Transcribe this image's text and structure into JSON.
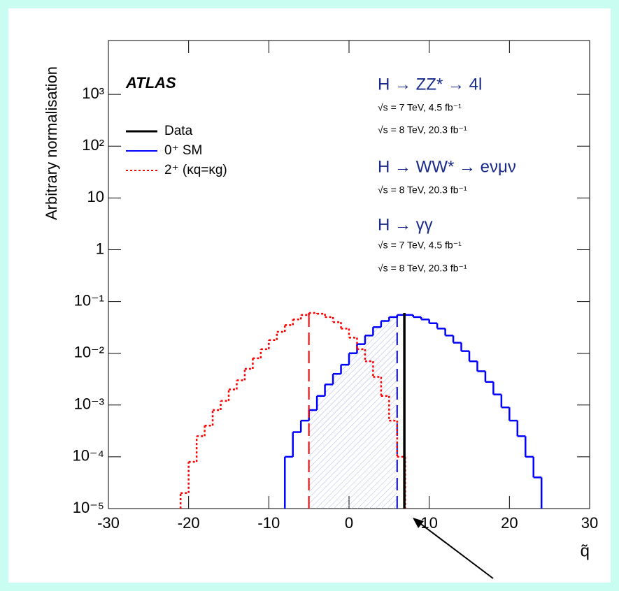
{
  "chart_data": {
    "type": "histogram",
    "xlabel": "q̃",
    "ylabel": "Arbitrary normalisation",
    "xlim": [
      -30,
      30
    ],
    "xticks": [
      -30,
      -20,
      -10,
      0,
      10,
      20,
      30
    ],
    "ylim": [
      1e-05,
      11000
    ],
    "ylog": true,
    "yticks": [
      {
        "value": 1e-05,
        "label": "10⁻⁵"
      },
      {
        "value": 0.0001,
        "label": "10⁻⁴"
      },
      {
        "value": 0.001,
        "label": "10⁻³"
      },
      {
        "value": 0.01,
        "label": "10⁻²"
      },
      {
        "value": 0.1,
        "label": "10⁻¹"
      },
      1,
      10,
      {
        "value": 100,
        "label": "10²"
      },
      {
        "value": 1000,
        "label": "10³"
      }
    ],
    "legend": "upper left",
    "series": [
      {
        "name": "Data",
        "color": "#000000",
        "x": 6.9
      },
      {
        "name": "0⁺ SM",
        "color": "#0000ff",
        "median": 6,
        "bins": [
          -8,
          -7,
          -6,
          -5,
          -4,
          -3,
          -2,
          -1,
          0,
          1,
          2,
          3,
          4,
          5,
          6,
          7,
          8,
          9,
          10,
          11,
          12,
          13,
          14,
          15,
          16,
          17,
          18,
          19,
          20,
          21,
          22,
          23,
          24
        ],
        "values": [
          0.0001,
          0.0003,
          0.0005,
          0.0008,
          0.0015,
          0.0025,
          0.004,
          0.006,
          0.01,
          0.015,
          0.022,
          0.032,
          0.042,
          0.05,
          0.055,
          0.055,
          0.05,
          0.045,
          0.038,
          0.03,
          0.022,
          0.016,
          0.011,
          0.007,
          0.0045,
          0.0028,
          0.0016,
          0.0009,
          0.0005,
          0.00025,
          0.0001,
          4e-05
        ]
      },
      {
        "name": "2⁺ (κq=κg)",
        "color": "#ff0000",
        "median": -5,
        "bins": [
          -21,
          -20,
          -19,
          -18,
          -17,
          -16,
          -15,
          -14,
          -13,
          -12,
          -11,
          -10,
          -9,
          -8,
          -7,
          -6,
          -5,
          -4,
          -3,
          -2,
          -1,
          0,
          1,
          2,
          3,
          4,
          5,
          6,
          7
        ],
        "values": [
          2e-05,
          8e-05,
          0.00025,
          0.0004,
          0.0008,
          0.0012,
          0.002,
          0.003,
          0.005,
          0.008,
          0.012,
          0.018,
          0.026,
          0.035,
          0.045,
          0.055,
          0.06,
          0.058,
          0.05,
          0.04,
          0.03,
          0.02,
          0.012,
          0.007,
          0.0035,
          0.0015,
          0.0005,
          0.0001
        ]
      }
    ],
    "annotations": [
      "ATLAS",
      "H → ZZ* → 4l",
      "√s = 7 TeV, 4.5 fb⁻¹",
      "√s = 8 TeV, 20.3 fb⁻¹",
      "H → WW* → eνμν",
      "√s = 8 TeV, 20.3 fb⁻¹",
      "H → γγ",
      "√s = 7 TeV, 4.5 fb⁻¹",
      "√s = 8 TeV, 20.3 fb⁻¹"
    ]
  }
}
